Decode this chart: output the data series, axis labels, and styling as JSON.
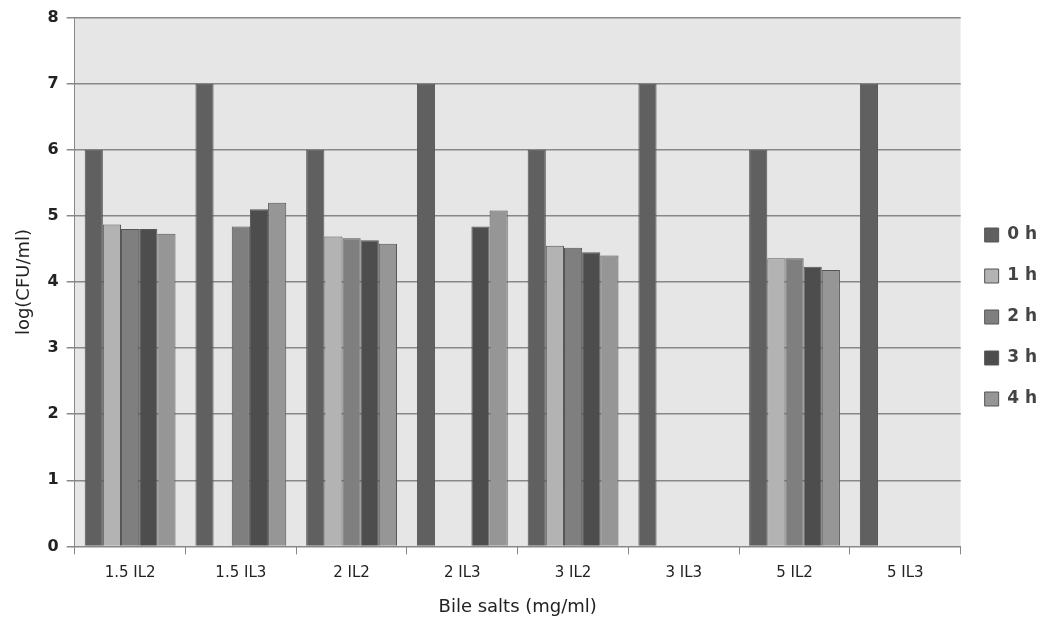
{
  "chart_data": {
    "type": "bar",
    "xlabel": "Bile salts (mg/ml)",
    "ylabel": "log(CFU/ml)",
    "categories": [
      "1.5 IL2",
      "1.5 IL3",
      "2 IL2",
      "2 IL3",
      "3 IL2",
      "3 IL3",
      "5 IL2",
      "5 IL3"
    ],
    "series": [
      {
        "name": "0 h",
        "color": "#606060",
        "values": [
          6,
          7,
          6,
          7,
          6,
          7,
          6,
          7
        ]
      },
      {
        "name": "1 h",
        "color": "#b3b3b3",
        "values": [
          4.87,
          null,
          4.69,
          null,
          4.55,
          null,
          4.36,
          null
        ]
      },
      {
        "name": "2 h",
        "color": "#7f7f7f",
        "values": [
          4.8,
          4.84,
          4.66,
          null,
          4.52,
          null,
          4.36,
          null
        ]
      },
      {
        "name": "3 h",
        "color": "#4d4d4d",
        "values": [
          4.8,
          5.1,
          4.63,
          4.84,
          4.45,
          null,
          4.23,
          null
        ]
      },
      {
        "name": "4 h",
        "color": "#969696",
        "values": [
          4.73,
          5.2,
          4.58,
          5.08,
          4.4,
          null,
          4.18,
          null
        ]
      }
    ],
    "ylim": [
      0,
      8
    ],
    "yticks": [
      0,
      1,
      2,
      3,
      4,
      5,
      6,
      7,
      8
    ],
    "grid": "y",
    "legend": "right"
  }
}
